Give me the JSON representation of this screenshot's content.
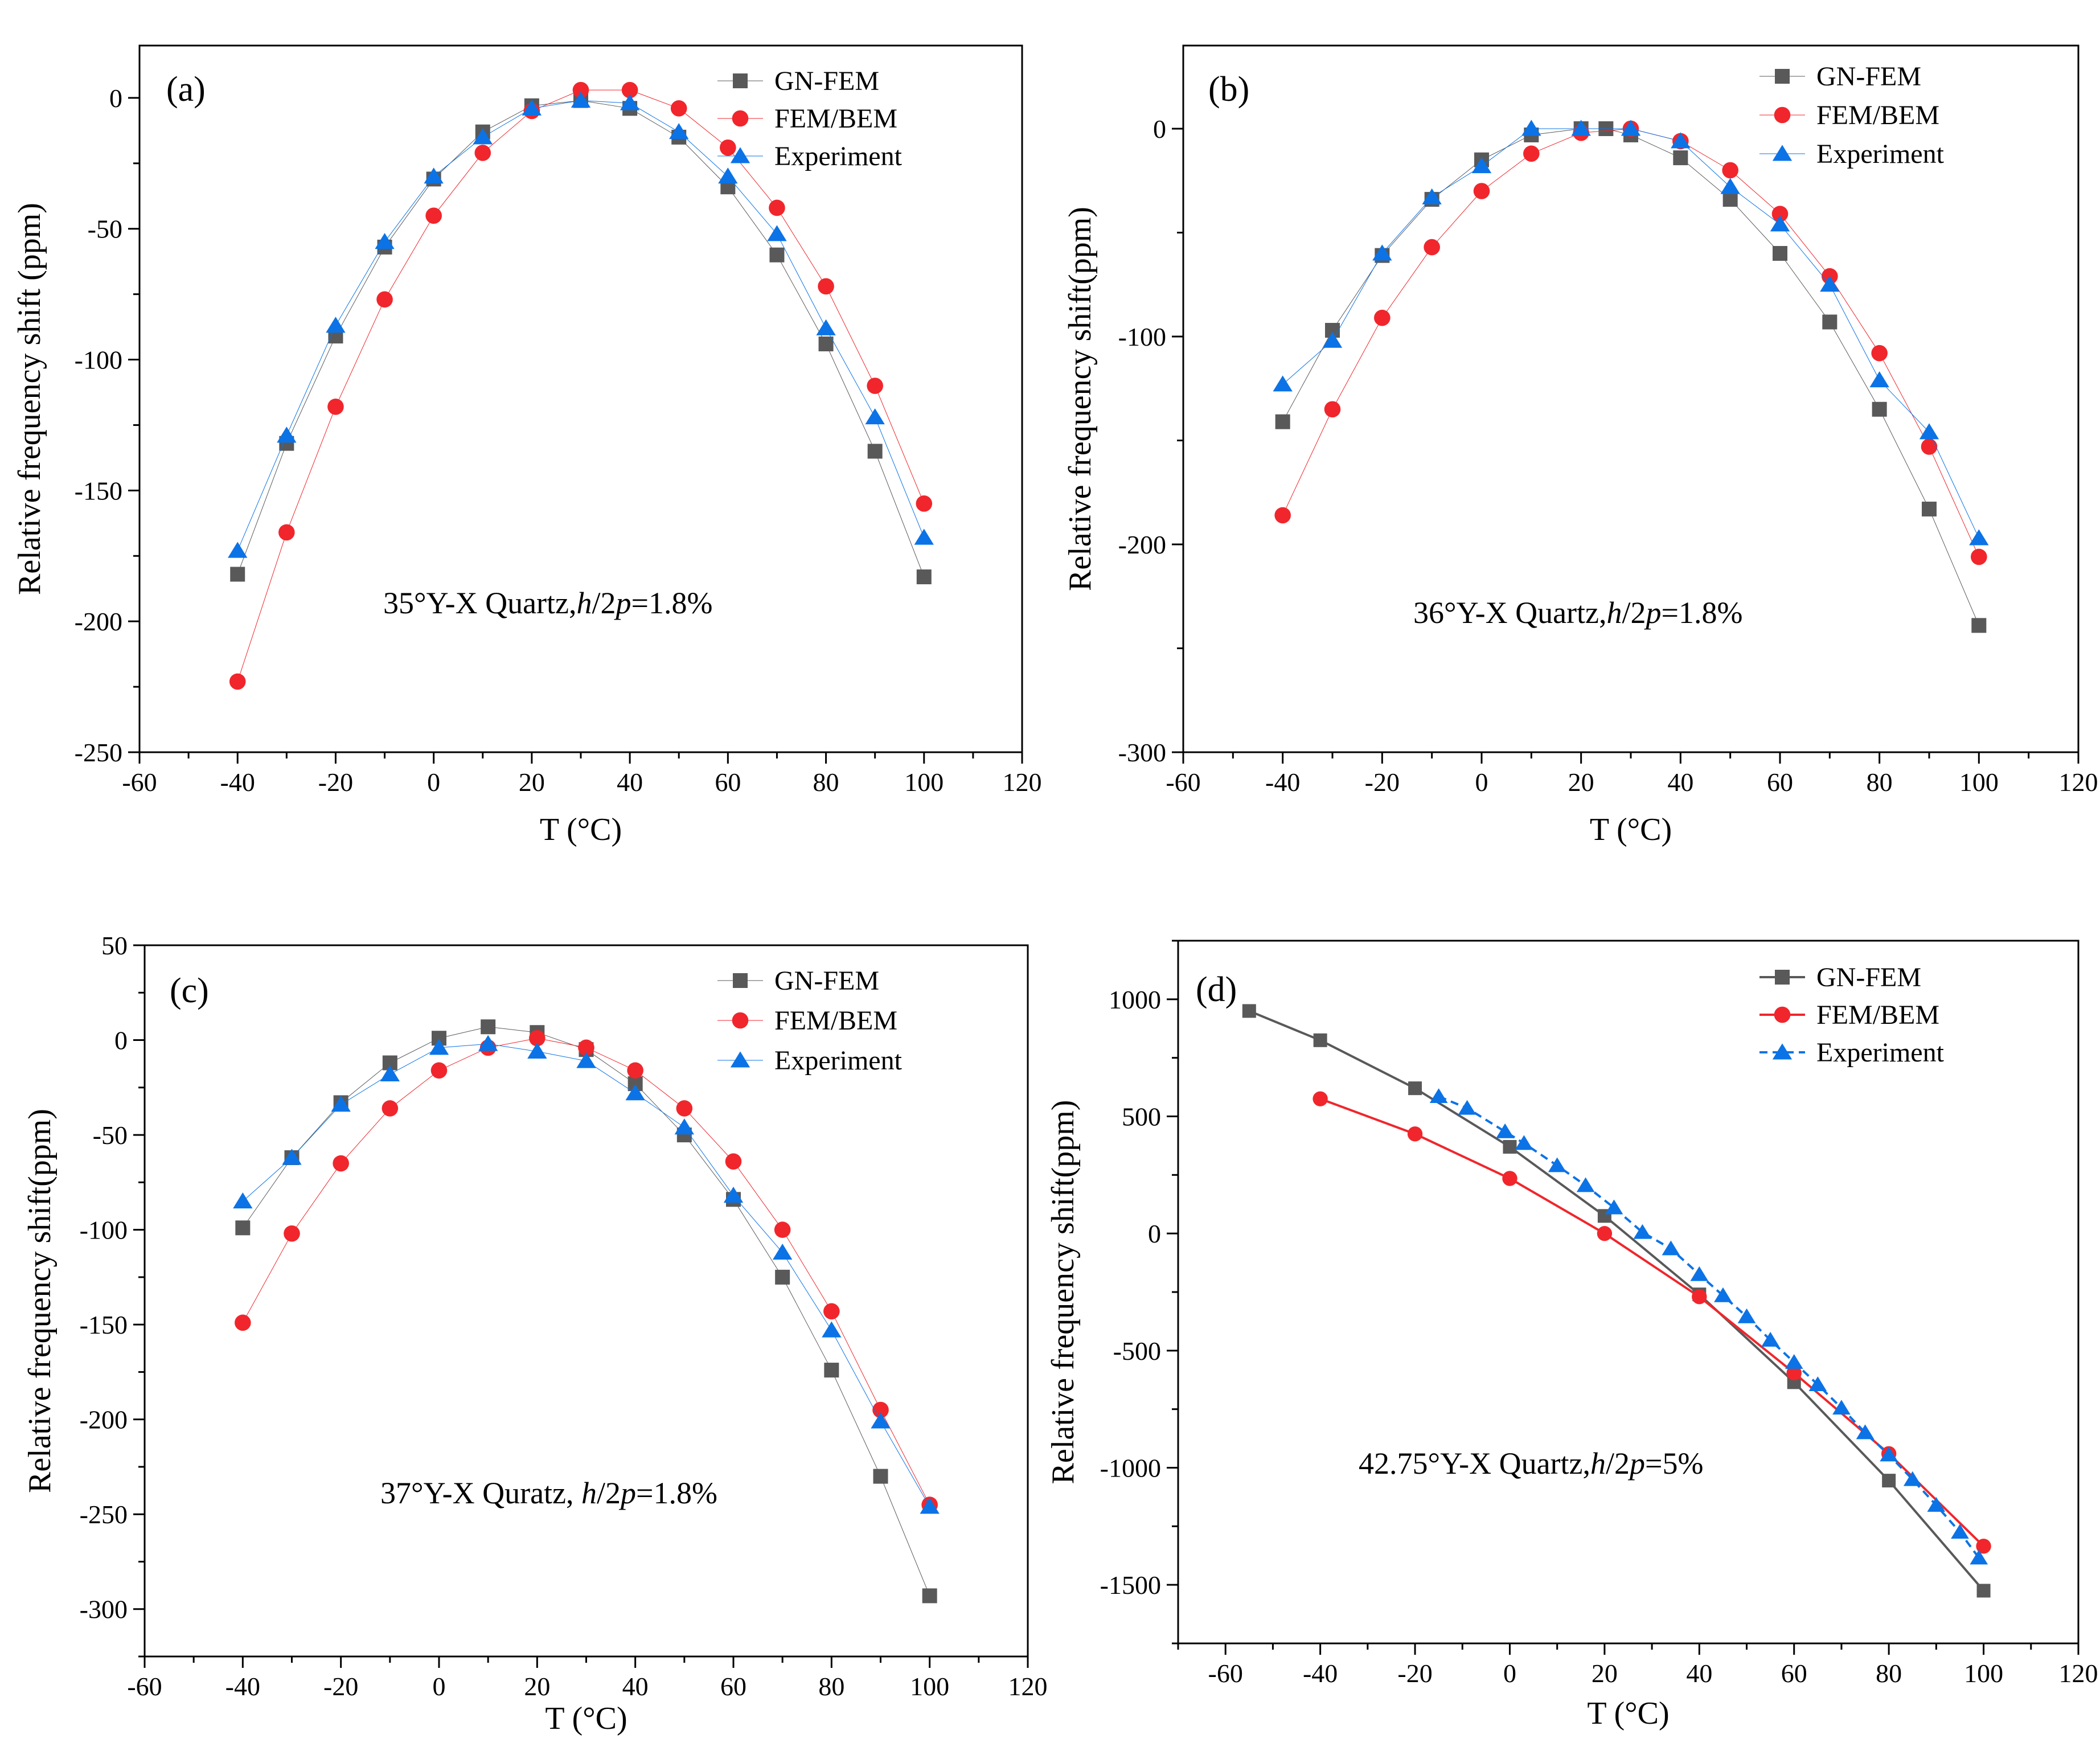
{
  "figure": {
    "series_style": {
      "GN-FEM": {
        "color": "#595959",
        "marker": "square"
      },
      "FEM/BEM": {
        "color": "#f0262c",
        "marker": "circle"
      },
      "Experiment": {
        "color": "#0b73e6",
        "marker": "triangle"
      }
    }
  },
  "chart_data": [
    {
      "panel": "a",
      "type": "line",
      "title": "",
      "panel_label": "(a)",
      "annotation": {
        "prefix": "35°Y-X Quartz,",
        "h": "h",
        "mid": "/2",
        "p": "p",
        "suffix": "=1.8%"
      },
      "xlabel": "T (°C)",
      "ylabel": "Relative frequency shift (ppm)",
      "xlim": [
        -60,
        120
      ],
      "ylim": [
        -250,
        20
      ],
      "xticks": [
        -60,
        -40,
        -20,
        0,
        20,
        40,
        60,
        80,
        100,
        120
      ],
      "yticks": [
        -250,
        -200,
        -150,
        -100,
        -50,
        0
      ],
      "legend": "top-right",
      "series": [
        {
          "name": "GN-FEM",
          "x": [
            -40,
            -30,
            -20,
            -10,
            0,
            10,
            20,
            30,
            40,
            50,
            60,
            70,
            80,
            90,
            100
          ],
          "y": [
            -182,
            -132,
            -91,
            -57,
            -31,
            -13,
            -3,
            -1,
            -4,
            -15,
            -34,
            -60,
            -94,
            -135,
            -183
          ]
        },
        {
          "name": "FEM/BEM",
          "x": [
            -40,
            -30,
            -20,
            -10,
            0,
            10,
            20,
            30,
            40,
            50,
            60,
            70,
            80,
            90,
            100
          ],
          "y": [
            -223,
            -166,
            -118,
            -77,
            -45,
            -21,
            -5,
            3,
            3,
            -4,
            -19,
            -42,
            -72,
            -110,
            -155
          ]
        },
        {
          "name": "Experiment",
          "x": [
            -40,
            -30,
            -20,
            -10,
            0,
            10,
            20,
            30,
            40,
            50,
            60,
            70,
            80,
            90,
            100
          ],
          "y": [
            -173,
            -129,
            -87,
            -55,
            -30,
            -15,
            -4,
            -1,
            -2,
            -13,
            -30,
            -52,
            -88,
            -122,
            -168
          ]
        }
      ]
    },
    {
      "panel": "b",
      "type": "line",
      "title": "",
      "panel_label": "(b)",
      "annotation": {
        "prefix": "36°Y-X Quartz,",
        "h": "h",
        "mid": "/2",
        "p": "p",
        "suffix": "=1.8%"
      },
      "xlabel": "T (°C)",
      "ylabel": "Relative frequency shift(ppm)",
      "xlim": [
        -60,
        120
      ],
      "ylim": [
        -300,
        40
      ],
      "xticks": [
        -60,
        -40,
        -20,
        0,
        20,
        40,
        60,
        80,
        100,
        120
      ],
      "yticks": [
        -300,
        -200,
        -100,
        0
      ],
      "legend": "top-right",
      "series": [
        {
          "name": "GN-FEM",
          "x": [
            -40,
            -30,
            -20,
            -10,
            0,
            10,
            20,
            25,
            30,
            40,
            50,
            60,
            70,
            80,
            90,
            100
          ],
          "y": [
            -141,
            -97,
            -61,
            -34,
            -15,
            -3,
            0,
            0,
            -3,
            -14,
            -34,
            -60,
            -93,
            -135,
            -183,
            -239
          ]
        },
        {
          "name": "FEM/BEM",
          "x": [
            -40,
            -30,
            -20,
            -10,
            0,
            10,
            20,
            30,
            40,
            50,
            60,
            70,
            80,
            90,
            100
          ],
          "y": [
            -186,
            -135,
            -91,
            -57,
            -30,
            -12,
            -2,
            0,
            -6,
            -20,
            -41,
            -71,
            -108,
            -153,
            -206
          ]
        },
        {
          "name": "Experiment",
          "x": [
            -40,
            -30,
            -20,
            -10,
            0,
            10,
            20,
            30,
            40,
            50,
            60,
            70,
            80,
            90,
            100
          ],
          "y": [
            -123,
            -102,
            -60,
            -33,
            -18,
            0,
            0,
            0,
            -6,
            -28,
            -46,
            -75,
            -121,
            -146,
            -197
          ]
        }
      ]
    },
    {
      "panel": "c",
      "type": "line",
      "title": "",
      "panel_label": "(c)",
      "annotation": {
        "prefix": "37°Y-X Quratz, ",
        "h": "h",
        "mid": "/2",
        "p": "p",
        "suffix": "=1.8%"
      },
      "xlabel": "T (°C)",
      "ylabel": "Relative frequency shift(ppm)",
      "xlim": [
        -60,
        120
      ],
      "ylim": [
        -325,
        50
      ],
      "xticks": [
        -60,
        -40,
        -20,
        0,
        20,
        40,
        60,
        80,
        100,
        120
      ],
      "yticks": [
        -300,
        -250,
        -200,
        -150,
        -100,
        -50,
        0,
        50
      ],
      "legend": "top-right",
      "series": [
        {
          "name": "GN-FEM",
          "x": [
            -40,
            -30,
            -20,
            -10,
            0,
            10,
            20,
            30,
            40,
            50,
            60,
            70,
            80,
            90,
            100
          ],
          "y": [
            -99,
            -62,
            -33,
            -12,
            1,
            7,
            4,
            -5,
            -23,
            -50,
            -84,
            -125,
            -174,
            -230,
            -293
          ]
        },
        {
          "name": "FEM/BEM",
          "x": [
            -40,
            -30,
            -20,
            -10,
            0,
            10,
            20,
            30,
            40,
            50,
            60,
            70,
            80,
            90,
            100
          ],
          "y": [
            -149,
            -102,
            -65,
            -36,
            -16,
            -4,
            1,
            -4,
            -16,
            -36,
            -64,
            -100,
            -143,
            -195,
            -245
          ]
        },
        {
          "name": "Experiment",
          "x": [
            -40,
            -30,
            -20,
            -10,
            0,
            10,
            20,
            30,
            40,
            50,
            60,
            70,
            80,
            90,
            100
          ],
          "y": [
            -85,
            -62,
            -34,
            -18,
            -4,
            -2,
            -6,
            -11,
            -28,
            -46,
            -82,
            -112,
            -153,
            -201,
            -246
          ]
        }
      ]
    },
    {
      "panel": "d",
      "type": "line",
      "title": "",
      "panel_label": "(d)",
      "annotation": {
        "prefix": "42.75°Y-X Quartz,",
        "h": "h",
        "mid": "/2",
        "p": "p",
        "suffix": "=5%"
      },
      "xlabel": "T (°C)",
      "ylabel": "Relative frequency shift(ppm)",
      "xlim": [
        -70,
        120
      ],
      "ylim": [
        -1750,
        1250
      ],
      "xticks": [
        -60,
        -40,
        -20,
        0,
        20,
        40,
        60,
        80,
        100,
        120
      ],
      "yticks": [
        -1500,
        -1000,
        -500,
        0,
        500,
        1000
      ],
      "legend": "top-right",
      "series": [
        {
          "name": "GN-FEM",
          "x": [
            -55,
            -40,
            -20,
            0,
            20,
            40,
            60,
            80,
            100
          ],
          "y": [
            950,
            825,
            620,
            370,
            75,
            -260,
            -635,
            -1055,
            -1525
          ]
        },
        {
          "name": "FEM/BEM",
          "x": [
            -40,
            -20,
            0,
            20,
            40,
            60,
            80,
            100
          ],
          "y": [
            575,
            425,
            235,
            0,
            -270,
            -595,
            -940,
            -1335
          ]
        },
        {
          "name": "Experiment",
          "x": [
            -15,
            -9,
            -1,
            3,
            10,
            16,
            22,
            28,
            34,
            40,
            45,
            50,
            55,
            60,
            65,
            70,
            75,
            80,
            85,
            90,
            95,
            99
          ],
          "y": [
            585,
            535,
            435,
            385,
            290,
            205,
            110,
            5,
            -65,
            -175,
            -265,
            -355,
            -455,
            -550,
            -645,
            -745,
            -850,
            -945,
            -1050,
            -1160,
            -1275,
            -1385
          ]
        }
      ]
    }
  ]
}
